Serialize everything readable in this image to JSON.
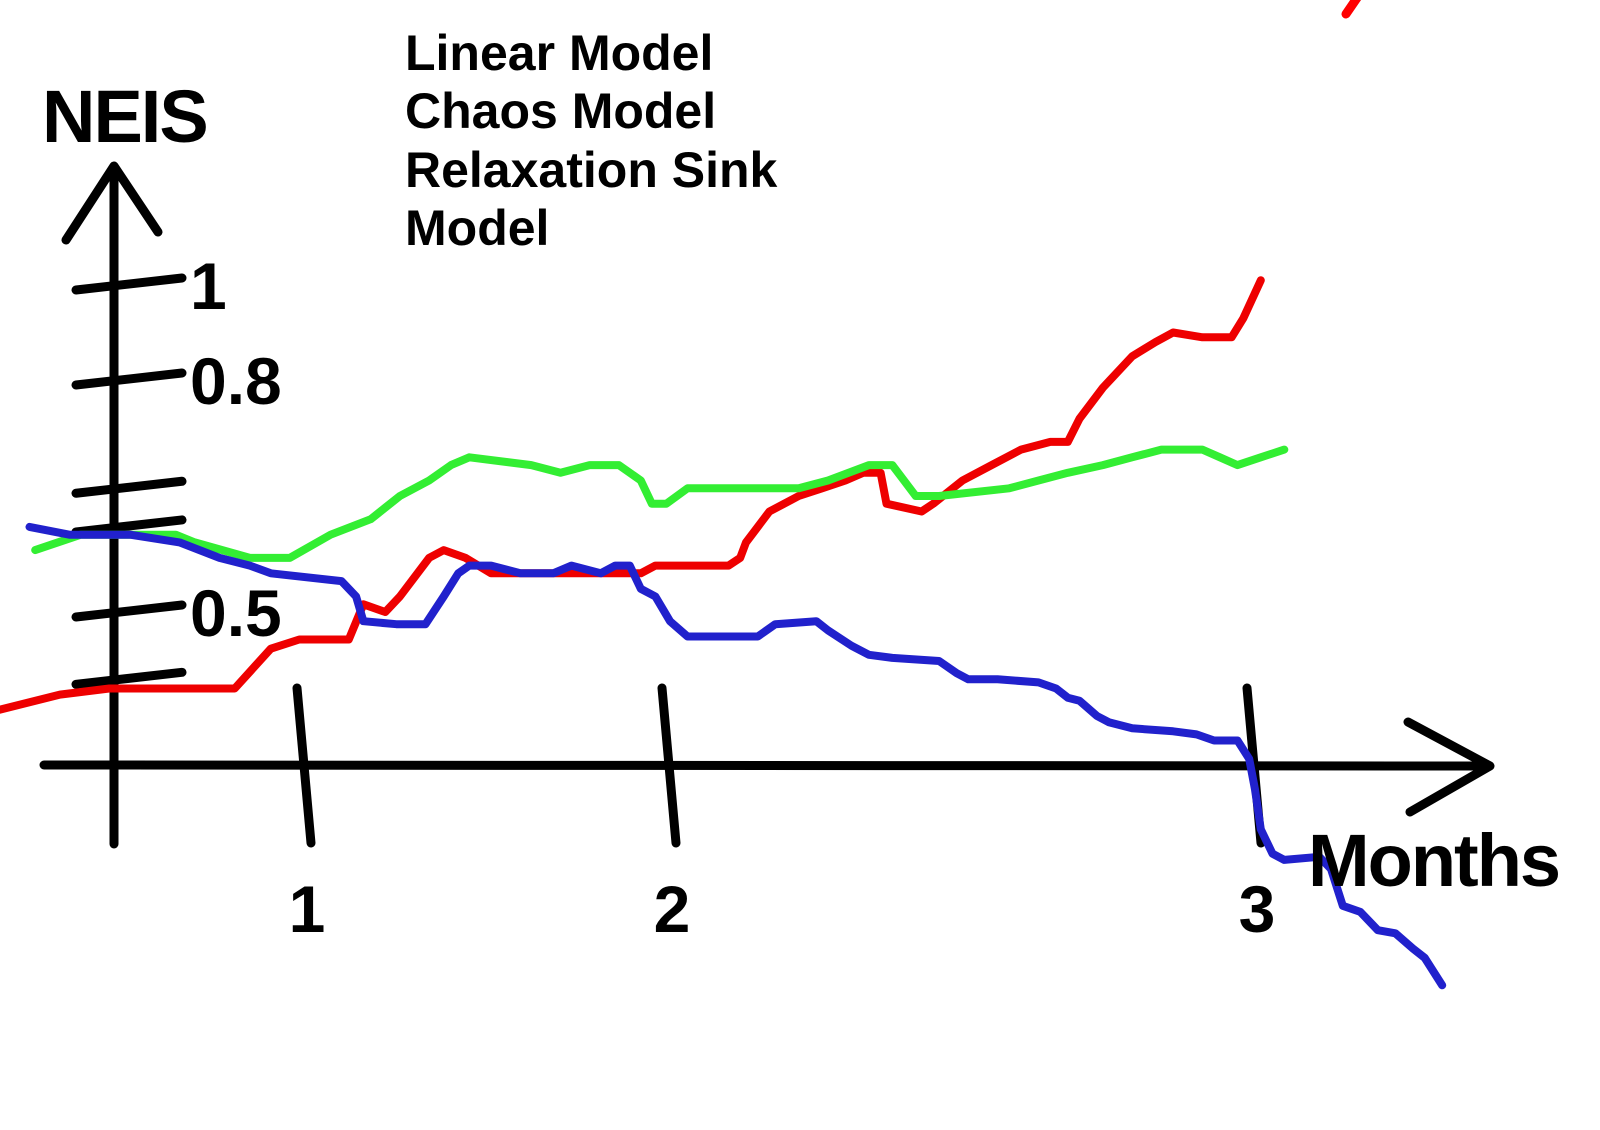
{
  "page": {
    "background": "#ffffff",
    "ink_color": "#000000"
  },
  "chart_data": {
    "type": "line",
    "title": "",
    "xlabel": "Months",
    "ylabel": "NEIS",
    "xlim": [
      -0.65,
      3.35
    ],
    "ylim": [
      -0.75,
      1.05
    ],
    "grid": false,
    "legend_position": "top-center",
    "style": "hand-drawn",
    "legend_lines": [
      {
        "text": "Linear Model",
        "color": "#ff0000"
      },
      {
        "text": "Chaos Model",
        "color": "#33ee33"
      },
      {
        "text": "Relaxation Sink",
        "color": "#2121cc"
      },
      {
        "text": "Model",
        "color": "#2121cc"
      }
    ],
    "x_ticks": [
      {
        "value": 1,
        "label": "1"
      },
      {
        "value": 2,
        "label": "2"
      },
      {
        "value": 3,
        "label": "3"
      }
    ],
    "y_ticks": [
      {
        "value": 1,
        "label": "1"
      },
      {
        "value": 0.8,
        "label": "0.8"
      },
      {
        "value": 0.66,
        "label": ""
      },
      {
        "value": 0.61,
        "label": ""
      },
      {
        "value": 0.5,
        "label": "0.5"
      },
      {
        "value": 0.28,
        "label": ""
      }
    ],
    "series": [
      {
        "name": "Linear Model",
        "color": "#ee0000",
        "points": [
          [
            -0.61,
            0.18
          ],
          [
            -0.29,
            0.23
          ],
          [
            -0.03,
            0.25
          ],
          [
            0.63,
            0.25
          ],
          [
            0.82,
            0.38
          ],
          [
            0.97,
            0.41
          ],
          [
            1.12,
            0.41
          ],
          [
            1.16,
            0.51
          ],
          [
            1.22,
            0.5
          ],
          [
            1.26,
            0.52
          ],
          [
            1.34,
            0.57
          ],
          [
            1.38,
            0.58
          ],
          [
            1.44,
            0.57
          ],
          [
            1.51,
            0.55
          ],
          [
            1.59,
            0.55
          ],
          [
            1.81,
            0.55
          ],
          [
            1.92,
            0.55
          ],
          [
            1.96,
            0.56
          ],
          [
            2.1,
            0.56
          ],
          [
            2.12,
            0.57
          ],
          [
            2.13,
            0.59
          ],
          [
            2.17,
            0.63
          ],
          [
            2.22,
            0.65
          ],
          [
            2.26,
            0.66
          ],
          [
            2.3,
            0.67
          ],
          [
            2.33,
            0.68
          ],
          [
            2.36,
            0.68
          ],
          [
            2.37,
            0.64
          ],
          [
            2.43,
            0.63
          ],
          [
            2.45,
            0.64
          ],
          [
            2.5,
            0.67
          ],
          [
            2.55,
            0.69
          ],
          [
            2.6,
            0.71
          ],
          [
            2.65,
            0.72
          ],
          [
            2.68,
            0.72
          ],
          [
            2.7,
            0.75
          ],
          [
            2.74,
            0.79
          ],
          [
            2.79,
            0.85
          ],
          [
            2.83,
            0.88
          ],
          [
            2.86,
            0.9
          ],
          [
            2.91,
            0.89
          ],
          [
            2.96,
            0.89
          ],
          [
            2.98,
            0.93
          ],
          [
            3.01,
            1.01
          ]
        ]
      },
      {
        "name": "Chaos Model",
        "color": "#33ee33",
        "points": [
          [
            -0.42,
            0.58
          ],
          [
            -0.18,
            0.6
          ],
          [
            0.03,
            0.6
          ],
          [
            0.32,
            0.6
          ],
          [
            0.42,
            0.59
          ],
          [
            0.71,
            0.57
          ],
          [
            0.92,
            0.57
          ],
          [
            1.07,
            0.6
          ],
          [
            1.18,
            0.62
          ],
          [
            1.26,
            0.65
          ],
          [
            1.34,
            0.67
          ],
          [
            1.4,
            0.69
          ],
          [
            1.45,
            0.7
          ],
          [
            1.62,
            0.69
          ],
          [
            1.7,
            0.68
          ],
          [
            1.78,
            0.69
          ],
          [
            1.86,
            0.69
          ],
          [
            1.92,
            0.67
          ],
          [
            1.95,
            0.64
          ],
          [
            1.99,
            0.64
          ],
          [
            2.03,
            0.66
          ],
          [
            2.15,
            0.66
          ],
          [
            2.22,
            0.66
          ],
          [
            2.27,
            0.67
          ],
          [
            2.34,
            0.69
          ],
          [
            2.38,
            0.69
          ],
          [
            2.4,
            0.67
          ],
          [
            2.42,
            0.65
          ],
          [
            2.46,
            0.65
          ],
          [
            2.58,
            0.66
          ],
          [
            2.63,
            0.67
          ],
          [
            2.68,
            0.68
          ],
          [
            2.74,
            0.69
          ],
          [
            2.79,
            0.7
          ],
          [
            2.84,
            0.71
          ],
          [
            2.91,
            0.71
          ],
          [
            2.94,
            0.7
          ],
          [
            2.97,
            0.69
          ],
          [
            3.01,
            0.7
          ],
          [
            3.05,
            0.71
          ]
        ]
      },
      {
        "name": "Relaxation Sink Model",
        "color": "#2121cc",
        "points": [
          [
            -0.45,
            0.61
          ],
          [
            -0.24,
            0.6
          ],
          [
            0.08,
            0.6
          ],
          [
            0.34,
            0.59
          ],
          [
            0.55,
            0.57
          ],
          [
            0.71,
            0.56
          ],
          [
            0.82,
            0.55
          ],
          [
            1.1,
            0.54
          ],
          [
            1.14,
            0.52
          ],
          [
            1.16,
            0.47
          ],
          [
            1.25,
            0.46
          ],
          [
            1.33,
            0.46
          ],
          [
            1.38,
            0.52
          ],
          [
            1.42,
            0.55
          ],
          [
            1.45,
            0.56
          ],
          [
            1.51,
            0.56
          ],
          [
            1.59,
            0.55
          ],
          [
            1.68,
            0.55
          ],
          [
            1.73,
            0.56
          ],
          [
            1.81,
            0.55
          ],
          [
            1.85,
            0.56
          ],
          [
            1.89,
            0.56
          ],
          [
            1.92,
            0.53
          ],
          [
            1.96,
            0.52
          ],
          [
            2.0,
            0.47
          ],
          [
            2.03,
            0.42
          ],
          [
            2.05,
            0.42
          ],
          [
            2.15,
            0.42
          ],
          [
            2.18,
            0.46
          ],
          [
            2.25,
            0.47
          ],
          [
            2.27,
            0.44
          ],
          [
            2.31,
            0.39
          ],
          [
            2.34,
            0.36
          ],
          [
            2.38,
            0.35
          ],
          [
            2.46,
            0.34
          ],
          [
            2.49,
            0.3
          ],
          [
            2.51,
            0.28
          ],
          [
            2.56,
            0.28
          ],
          [
            2.63,
            0.27
          ],
          [
            2.66,
            0.25
          ],
          [
            2.68,
            0.22
          ],
          [
            2.7,
            0.21
          ],
          [
            2.73,
            0.16
          ],
          [
            2.75,
            0.14
          ],
          [
            2.79,
            0.12
          ],
          [
            2.86,
            0.11
          ],
          [
            2.9,
            0.1
          ],
          [
            2.93,
            0.08
          ],
          [
            2.97,
            0.08
          ],
          [
            2.99,
            0.02
          ],
          [
            3.0,
            -0.08
          ],
          [
            3.01,
            -0.21
          ],
          [
            3.03,
            -0.29
          ],
          [
            3.05,
            -0.31
          ],
          [
            3.11,
            -0.3
          ],
          [
            3.13,
            -0.34
          ],
          [
            3.15,
            -0.46
          ],
          [
            3.18,
            -0.48
          ],
          [
            3.21,
            -0.54
          ],
          [
            3.24,
            -0.55
          ],
          [
            3.27,
            -0.6
          ],
          [
            3.29,
            -0.63
          ],
          [
            3.32,
            -0.72
          ]
        ]
      }
    ]
  }
}
